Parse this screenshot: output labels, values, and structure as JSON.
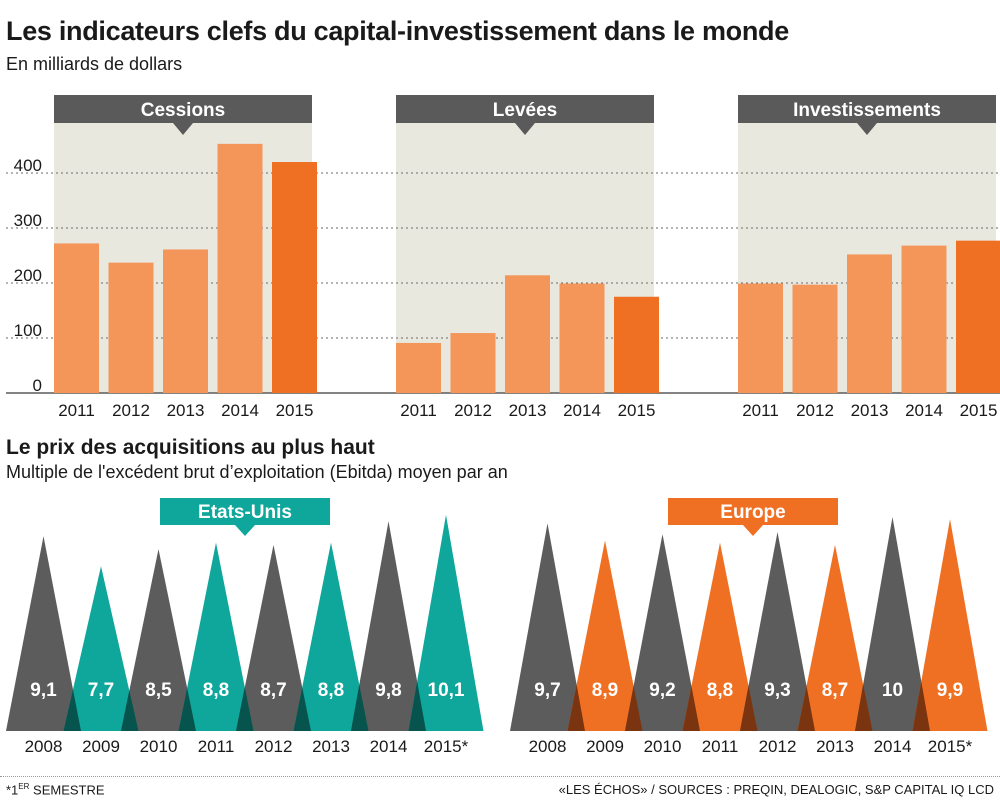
{
  "header": {
    "title": "Les indicateurs clefs du capital-investissement dans le monde",
    "subtitle": "En milliards de dollars"
  },
  "section2": {
    "title": "Le prix des acquisitions au plus haut",
    "subtitle": "Multiple de l'excédent brut d’exploitation (Ebitda) moyen par an"
  },
  "footer": {
    "note_prefix": "*1",
    "note_sup": "ER",
    "note_suffix": " SEMESTRE",
    "source": "«LES ÉCHOS» / SOURCES : PREQIN, DEALOGIC, S&P CAPITAL IQ LCD"
  },
  "colors": {
    "bar_light": "#f4965a",
    "bar_dark": "#f07023",
    "panel_bg": "#e9e8df",
    "header_bg": "#5a5a5a",
    "grey_tri": "#5c5c5c",
    "teal": "#0fa69b",
    "orange": "#f07023",
    "overlap_teal": "#07544e",
    "overlap_orange": "#7a3510"
  },
  "chart_data": [
    {
      "type": "bar",
      "title": "Cessions",
      "categories": [
        "2011",
        "2012",
        "2013",
        "2014",
        "2015"
      ],
      "values": [
        272,
        237,
        261,
        453,
        420
      ],
      "ylim": [
        0,
        450
      ],
      "yticks": [
        0,
        100,
        200,
        300,
        400
      ],
      "ylabel": "En milliards de dollars"
    },
    {
      "type": "bar",
      "title": "Levées",
      "categories": [
        "2011",
        "2012",
        "2013",
        "2014",
        "2015"
      ],
      "values": [
        91,
        109,
        214,
        199,
        175
      ],
      "ylim": [
        0,
        450
      ]
    },
    {
      "type": "bar",
      "title": "Investissements",
      "categories": [
        "2011",
        "2012",
        "2013",
        "2014",
        "2015"
      ],
      "values": [
        199,
        197,
        252,
        268,
        277
      ],
      "ylim": [
        0,
        450
      ]
    },
    {
      "type": "bar",
      "title": "Etats-Unis",
      "categories": [
        "2008",
        "2009",
        "2010",
        "2011",
        "2012",
        "2013",
        "2014",
        "2015*"
      ],
      "values": [
        9.1,
        7.7,
        8.5,
        8.8,
        8.7,
        8.8,
        9.8,
        10.1
      ],
      "labels": [
        "9,1",
        "7,7",
        "8,5",
        "8,8",
        "8,7",
        "8,8",
        "9,8",
        "10,1"
      ]
    },
    {
      "type": "bar",
      "title": "Europe",
      "categories": [
        "2008",
        "2009",
        "2010",
        "2011",
        "2012",
        "2013",
        "2014",
        "2015*"
      ],
      "values": [
        9.7,
        8.9,
        9.2,
        8.8,
        9.3,
        8.7,
        10,
        9.9
      ],
      "labels": [
        "9,7",
        "8,9",
        "9,2",
        "8,8",
        "9,3",
        "8,7",
        "10",
        "9,9"
      ]
    }
  ]
}
